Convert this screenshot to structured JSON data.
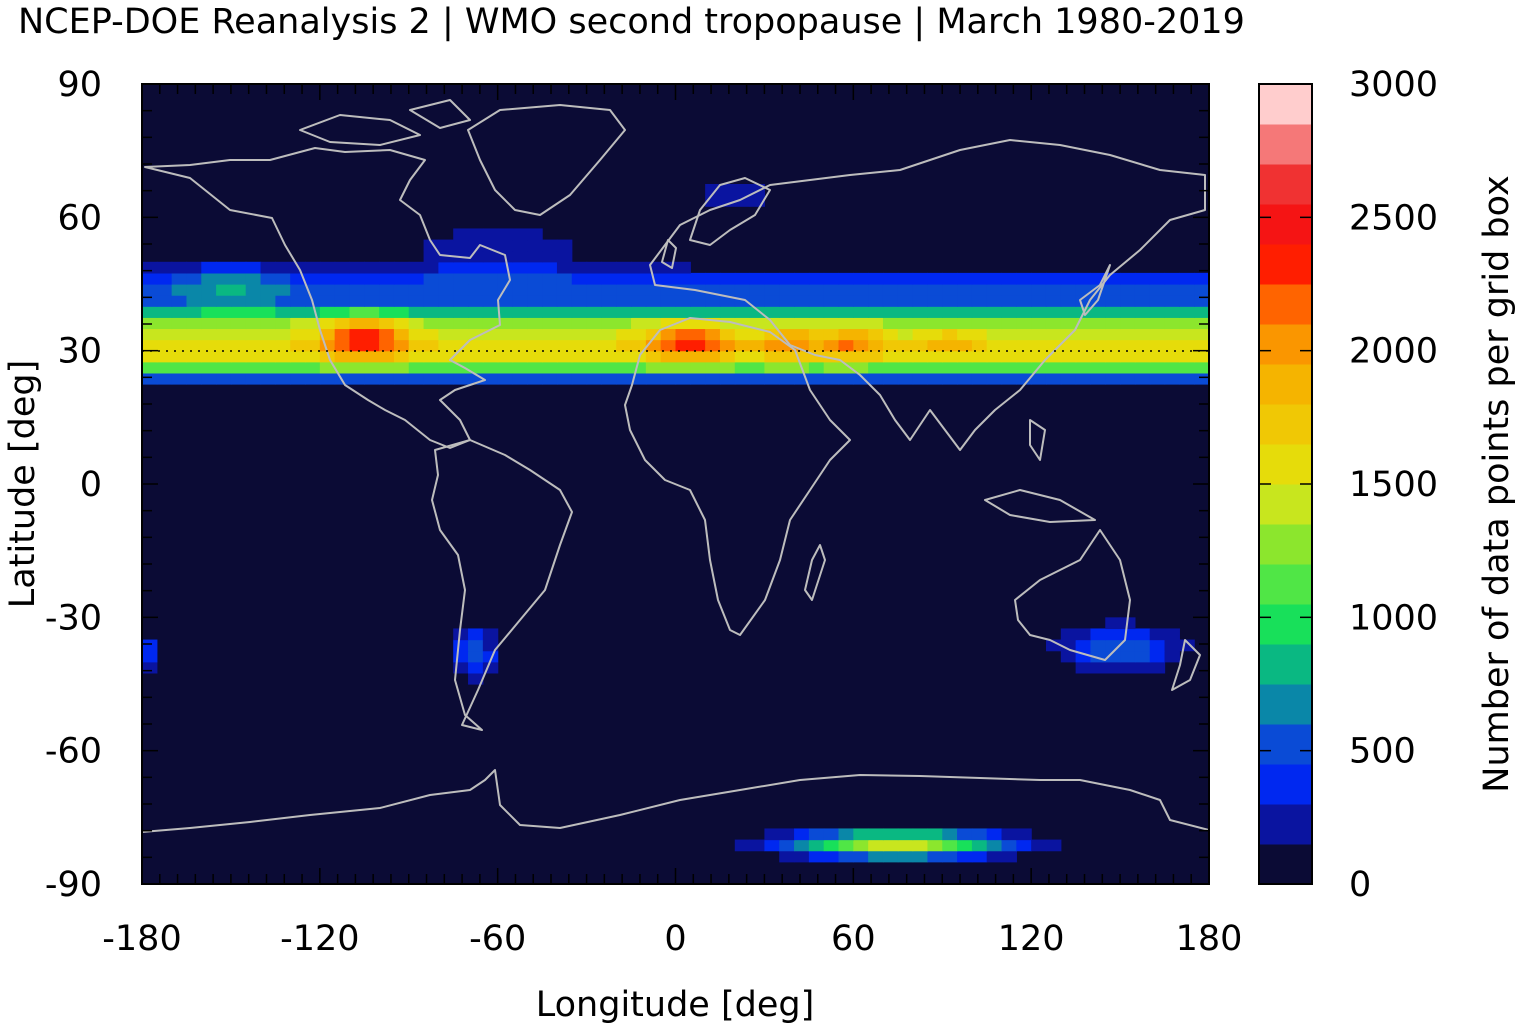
{
  "chart_data": {
    "type": "heatmap",
    "title": "NCEP-DOE Reanalysis 2 | WMO second tropopause | March 1980-2019",
    "xlabel": "Longitude [deg]",
    "ylabel": "Latitude [deg]",
    "colorbar_label": "Number of data points per grid box",
    "xlim": [
      -180,
      180
    ],
    "ylim": [
      -90,
      90
    ],
    "xticks": [
      -180,
      -120,
      -60,
      0,
      60,
      120,
      180
    ],
    "yticks": [
      90,
      60,
      30,
      0,
      -30,
      -60,
      -90
    ],
    "colorbar_ticks": [
      0,
      500,
      1000,
      1500,
      2000,
      2500,
      3000
    ],
    "colorbar_range": [
      0,
      3000
    ],
    "grid": "dotted line at 30 deg latitude",
    "background_color": "#0b0b35",
    "coastline_color": "#bdbdbd",
    "colorbar_levels": [
      {
        "min": 0,
        "max": 150,
        "color": "#0b0b35"
      },
      {
        "min": 150,
        "max": 300,
        "color": "#0a14a0"
      },
      {
        "min": 300,
        "max": 450,
        "color": "#0028f0"
      },
      {
        "min": 450,
        "max": 600,
        "color": "#0a4bd6"
      },
      {
        "min": 600,
        "max": 750,
        "color": "#0a87a8"
      },
      {
        "min": 750,
        "max": 900,
        "color": "#0ab882"
      },
      {
        "min": 900,
        "max": 1050,
        "color": "#18e05a"
      },
      {
        "min": 1050,
        "max": 1200,
        "color": "#50e646"
      },
      {
        "min": 1200,
        "max": 1350,
        "color": "#8ce62d"
      },
      {
        "min": 1350,
        "max": 1500,
        "color": "#c8e61e"
      },
      {
        "min": 1500,
        "max": 1650,
        "color": "#e6dc0a"
      },
      {
        "min": 1650,
        "max": 1800,
        "color": "#f0c805"
      },
      {
        "min": 1800,
        "max": 1950,
        "color": "#f5b400"
      },
      {
        "min": 1950,
        "max": 2100,
        "color": "#fa9600"
      },
      {
        "min": 2100,
        "max": 2250,
        "color": "#ff6400"
      },
      {
        "min": 2250,
        "max": 2400,
        "color": "#ff1e00"
      },
      {
        "min": 2400,
        "max": 2550,
        "color": "#f51414"
      },
      {
        "min": 2550,
        "max": 2700,
        "color": "#f03232"
      },
      {
        "min": 2700,
        "max": 2850,
        "color": "#f57878"
      },
      {
        "min": 2850,
        "max": 3000,
        "color": "#ffcdcd"
      }
    ],
    "features": [
      {
        "name": "northern subtropical band",
        "lat_center": 31,
        "lat_half_width": 9,
        "lon_range": [
          -180,
          180
        ],
        "peak": 1600
      },
      {
        "name": "band north extension",
        "lat_center": 42,
        "lat_half_width": 8,
        "lon_range": [
          -180,
          180
        ],
        "peak": 500
      },
      {
        "name": "north america maximum",
        "lon": -105,
        "lat": 33,
        "lon_spread": 14,
        "lat_spread": 5,
        "peak": 900
      },
      {
        "name": "north africa maximum",
        "lon": 5,
        "lat": 32,
        "lon_spread": 14,
        "lat_spread": 4,
        "peak": 850
      },
      {
        "name": "middle east maximum",
        "lon": 38,
        "lat": 32,
        "lon_spread": 10,
        "lat_spread": 4,
        "peak": 500
      },
      {
        "name": "asia maximum",
        "lon": 60,
        "lat": 32,
        "lon_spread": 10,
        "lat_spread": 4,
        "peak": 550
      },
      {
        "name": "tibet maximum",
        "lon": 92,
        "lat": 32,
        "lon_spread": 10,
        "lat_spread": 3,
        "peak": 300
      },
      {
        "name": "north pacific",
        "lon": -150,
        "lat": 45,
        "lon_spread": 20,
        "lat_spread": 6,
        "peak": 300
      },
      {
        "name": "north atlantic",
        "lon": -60,
        "lat": 52,
        "lon_spread": 35,
        "lat_spread": 8,
        "peak": 250
      },
      {
        "name": "scandinavia",
        "lon": 20,
        "lat": 65,
        "lon_spread": 15,
        "lat_spread": 5,
        "peak": 250
      },
      {
        "name": "south america",
        "lon": -68,
        "lat": -38,
        "lon_spread": 8,
        "lat_spread": 6,
        "peak": 500
      },
      {
        "name": "australia new zealand",
        "lon": 150,
        "lat": -37,
        "lon_spread": 20,
        "lat_spread": 5,
        "peak": 600
      },
      {
        "name": "dateline south",
        "lon": -180,
        "lat": -38,
        "lon_spread": 5,
        "lat_spread": 4,
        "peak": 500
      },
      {
        "name": "antarctic",
        "lon": 75,
        "lat": -81,
        "lon_spread": 35,
        "lat_spread": 3,
        "peak": 1500
      }
    ]
  }
}
